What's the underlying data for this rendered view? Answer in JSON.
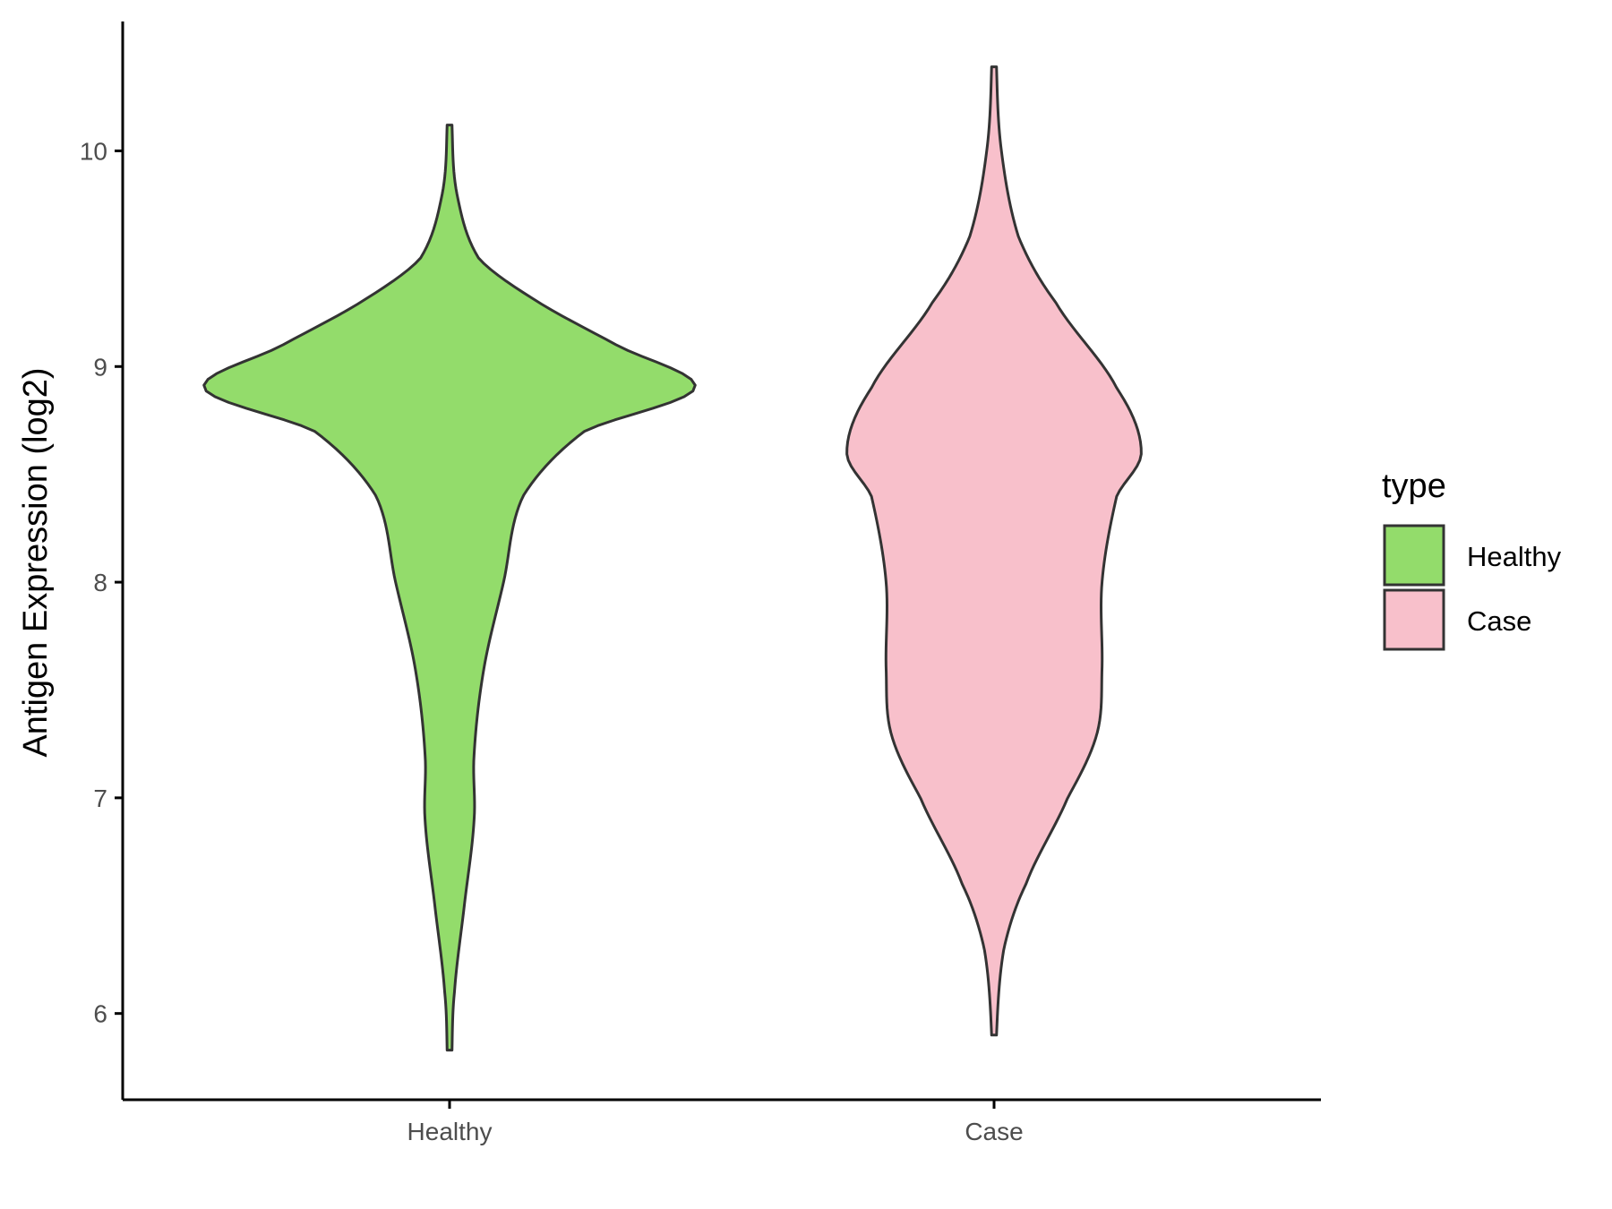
{
  "chart_data": {
    "type": "violin",
    "title": "",
    "xlabel": "",
    "ylabel": "Antigen Expression (log2)",
    "ylim": [
      5.6,
      10.6
    ],
    "yticks": [
      6,
      7,
      8,
      9,
      10
    ],
    "categories": [
      "Healthy",
      "Case"
    ],
    "grid": false,
    "legend": {
      "title": "type",
      "placement": "right",
      "entries": [
        {
          "label": "Healthy",
          "color": "#93dc6b"
        },
        {
          "label": "Case",
          "color": "#f8c0cb"
        }
      ]
    },
    "outline_color": "#333333",
    "series": [
      {
        "category": "Healthy",
        "color": "#93dc6b",
        "range": [
          5.83,
          10.12
        ],
        "density_profile": [
          {
            "y": 5.83,
            "w": 0.01
          },
          {
            "y": 6.1,
            "w": 0.02
          },
          {
            "y": 6.5,
            "w": 0.06
          },
          {
            "y": 6.9,
            "w": 0.1
          },
          {
            "y": 7.2,
            "w": 0.1
          },
          {
            "y": 7.6,
            "w": 0.14
          },
          {
            "y": 8.0,
            "w": 0.22
          },
          {
            "y": 8.4,
            "w": 0.3
          },
          {
            "y": 8.7,
            "w": 0.55
          },
          {
            "y": 8.9,
            "w": 1.0
          },
          {
            "y": 9.1,
            "w": 0.68
          },
          {
            "y": 9.3,
            "w": 0.36
          },
          {
            "y": 9.5,
            "w": 0.12
          },
          {
            "y": 9.8,
            "w": 0.03
          },
          {
            "y": 10.12,
            "w": 0.01
          }
        ]
      },
      {
        "category": "Case",
        "color": "#f8c0cb",
        "range": [
          5.9,
          10.39
        ],
        "density_profile": [
          {
            "y": 5.9,
            "w": 0.01
          },
          {
            "y": 6.3,
            "w": 0.04
          },
          {
            "y": 6.6,
            "w": 0.13
          },
          {
            "y": 7.0,
            "w": 0.3
          },
          {
            "y": 7.3,
            "w": 0.42
          },
          {
            "y": 7.6,
            "w": 0.44
          },
          {
            "y": 8.0,
            "w": 0.44
          },
          {
            "y": 8.4,
            "w": 0.5
          },
          {
            "y": 8.6,
            "w": 0.6
          },
          {
            "y": 8.9,
            "w": 0.5
          },
          {
            "y": 9.3,
            "w": 0.25
          },
          {
            "y": 9.6,
            "w": 0.1
          },
          {
            "y": 10.0,
            "w": 0.03
          },
          {
            "y": 10.39,
            "w": 0.01
          }
        ]
      }
    ]
  }
}
